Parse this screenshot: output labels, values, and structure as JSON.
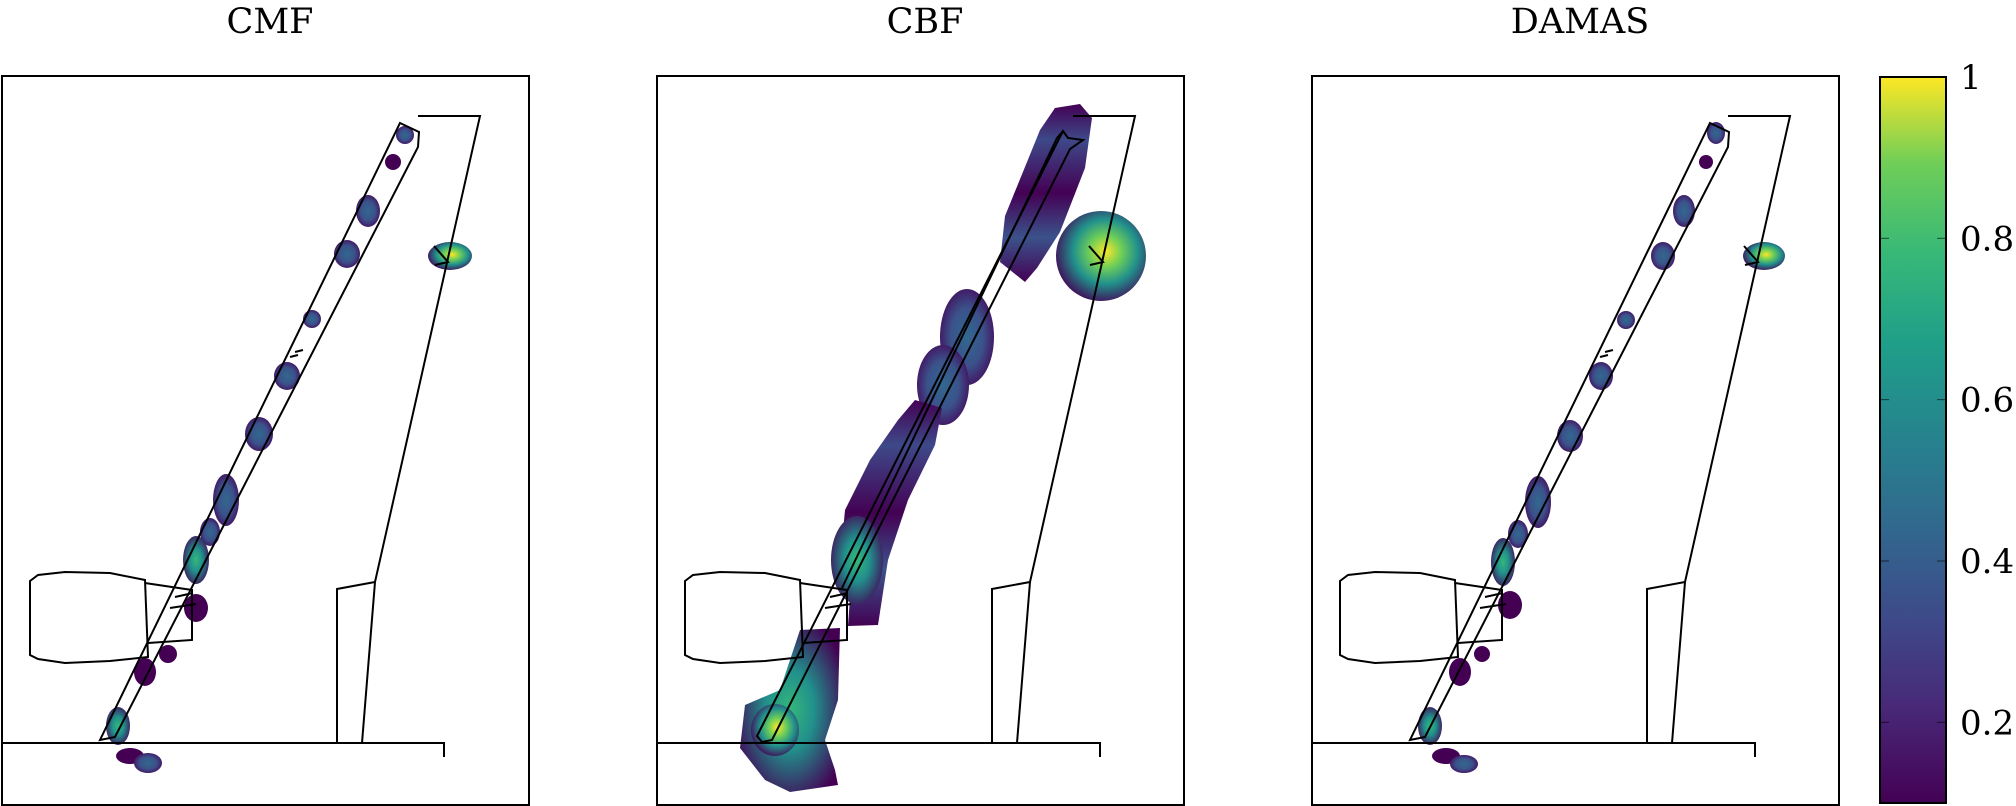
{
  "chart_data": {
    "type": "heatmap",
    "panels": [
      {
        "title": "CMF"
      },
      {
        "title": "CBF"
      },
      {
        "title": "DAMAS"
      }
    ],
    "colorbar": {
      "colormap": "viridis",
      "range": [
        0.1,
        1
      ],
      "ticks": [
        0.2,
        0.4,
        0.6,
        0.8,
        1
      ],
      "tick_labels": [
        "0.2",
        "0.4",
        "0.6",
        "0.8",
        "1"
      ]
    },
    "colors": {
      "low": "#440154",
      "mid": "#21918c",
      "high": "#fde725"
    }
  }
}
